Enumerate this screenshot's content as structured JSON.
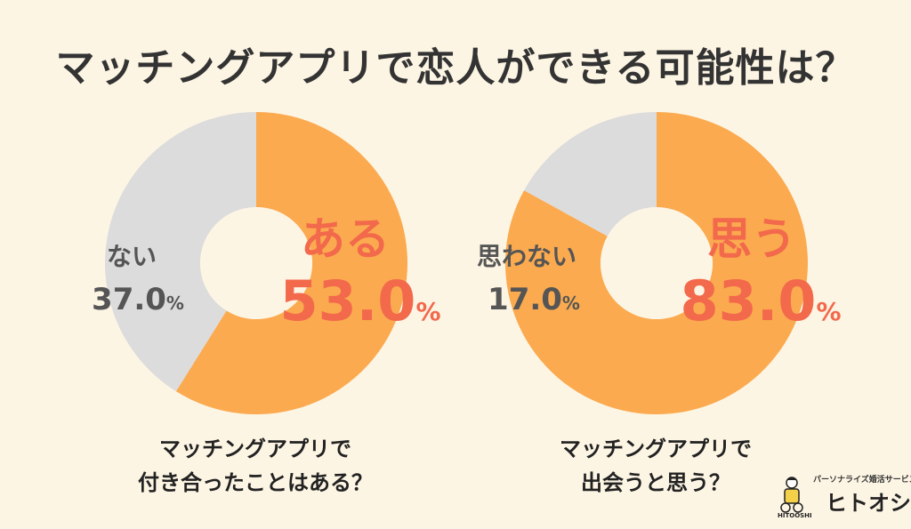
{
  "title": "マッチングアプリで恋人ができる可能性は？",
  "chart_data": [
    {
      "type": "pie",
      "question_line1": "マッチングアプリで",
      "question_line2": "付き合ったことはある？",
      "slices": [
        {
          "label": "ある",
          "value": 53.0,
          "display": "53.0",
          "color": "#FBAA4F"
        },
        {
          "label": "ない",
          "value": 37.0,
          "display": "37.0",
          "color": "#DCDCDC"
        }
      ],
      "unit": "%"
    },
    {
      "type": "pie",
      "question_line1": "マッチングアプリで",
      "question_line2": "出会うと思う？",
      "slices": [
        {
          "label": "思う",
          "value": 83.0,
          "display": "83.0",
          "color": "#FBAA4F"
        },
        {
          "label": "思わない",
          "value": 17.0,
          "display": "17.0",
          "color": "#DCDCDC"
        }
      ],
      "unit": "%"
    }
  ],
  "logo": {
    "tagline": "パーソナライズ婚活サービス",
    "name": "ヒトオシ",
    "sub": "HITOOSHI"
  },
  "colors": {
    "background": "#FDF5E4",
    "primary_slice": "#FBAA4F",
    "secondary_slice": "#DCDCDC",
    "highlight_text": "#F2694C"
  }
}
